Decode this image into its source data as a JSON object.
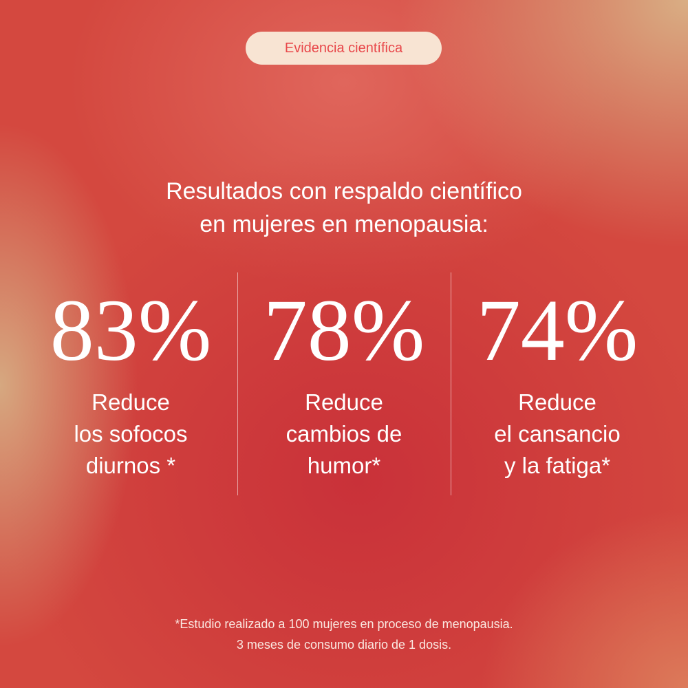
{
  "badge": {
    "label": "Evidencia científica",
    "bg": "#f8e4d3",
    "color": "#e8474a"
  },
  "heading": {
    "line1": "Resultados con respaldo científico",
    "line2": "en mujeres en menopausia:"
  },
  "stats": [
    {
      "value": "83%",
      "label": "Reduce\nlos sofocos\ndiurnos *"
    },
    {
      "value": "78%",
      "label": "Reduce\ncambios de\nhumor*"
    },
    {
      "value": "74%",
      "label": "Reduce\nel cansancio\ny la fatiga*"
    }
  ],
  "footnote": {
    "line1": "*Estudio realizado a 100 mujeres en proceso de menopausia.",
    "line2": "3 meses de consumo diario de 1 dosis."
  }
}
